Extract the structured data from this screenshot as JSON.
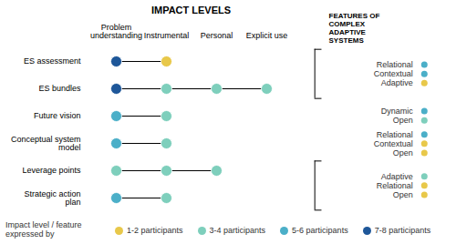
{
  "chart_data": {
    "type": "dot_matrix",
    "title": "IMPACT LEVELS",
    "categories": [
      "Problem\nunderstanding",
      "Instrumental",
      "Personal",
      "Explicit use"
    ],
    "rows": [
      {
        "label": "ES assessment",
        "points": [
          {
            "category": "Problem\nunderstanding",
            "color": "#1e5799"
          },
          {
            "category": "Instrumental",
            "color": "#e8c84a"
          }
        ]
      },
      {
        "label": "ES bundles",
        "points": [
          {
            "category": "Problem\nunderstanding",
            "color": "#1e5799"
          },
          {
            "category": "Instrumental",
            "color": "#7ecfbc"
          },
          {
            "category": "Personal",
            "color": "#7ecfbc"
          },
          {
            "category": "Explicit use",
            "color": "#7ecfbc"
          }
        ]
      },
      {
        "label": "Future vision",
        "points": [
          {
            "category": "Problem\nunderstanding",
            "color": "#4bafc8"
          },
          {
            "category": "Instrumental",
            "color": "#7ecfbc"
          }
        ]
      },
      {
        "label": "Conceptual system\nmodel",
        "points": [
          {
            "category": "Problem\nunderstanding",
            "color": "#4bafc8"
          },
          {
            "category": "Instrumental",
            "color": "#7ecfbc"
          }
        ]
      },
      {
        "label": "Leverage points",
        "points": [
          {
            "category": "Problem\nunderstanding",
            "color": "#7ecfbc"
          },
          {
            "category": "Instrumental",
            "color": "#7ecfbc"
          },
          {
            "category": "Personal",
            "color": "#7ecfbc"
          }
        ]
      },
      {
        "label": "Strategic action\nplan",
        "points": [
          {
            "category": "Problem\nunderstanding",
            "color": "#4bafc8"
          },
          {
            "category": "Instrumental",
            "color": "#7ecfbc"
          }
        ]
      }
    ],
    "features_title": "FEATURES OF\nCOMPLEX\nADAPTIVE\nSYSTEMS",
    "feature_groups": [
      {
        "rows": [
          "ES assessment",
          "ES bundles"
        ],
        "bracket": true,
        "items": [
          {
            "label": "Relational",
            "color": "#4bafc8"
          },
          {
            "label": "Contextual",
            "color": "#4bafc8"
          },
          {
            "label": "Adaptive",
            "color": "#e8c84a"
          }
        ]
      },
      {
        "rows": [
          "Future vision"
        ],
        "bracket": false,
        "items": [
          {
            "label": "Dynamic",
            "color": "#4bafc8"
          },
          {
            "label": "Open",
            "color": "#7ecfbc"
          }
        ]
      },
      {
        "rows": [
          "Conceptual system\nmodel"
        ],
        "bracket": false,
        "items": [
          {
            "label": "Relational",
            "color": "#4bafc8"
          },
          {
            "label": "Contextual",
            "color": "#e8c84a"
          },
          {
            "label": "Open",
            "color": "#e8c84a"
          }
        ]
      },
      {
        "rows": [
          "Leverage points",
          "Strategic action\nplan"
        ],
        "bracket": true,
        "items": [
          {
            "label": "Adaptive",
            "color": "#7ecfbc"
          },
          {
            "label": "Relational",
            "color": "#e8c84a"
          },
          {
            "label": "Open",
            "color": "#e8c84a"
          }
        ]
      }
    ],
    "legend_title": "Impact level / feature\nexpressed by",
    "series": [
      {
        "name": "1-2 participants",
        "color": "#e8c84a"
      },
      {
        "name": "3-4 participants",
        "color": "#7ecfbc"
      },
      {
        "name": "5-6 participants",
        "color": "#4bafc8"
      },
      {
        "name": "7-8 participants",
        "color": "#1e5799"
      }
    ]
  }
}
